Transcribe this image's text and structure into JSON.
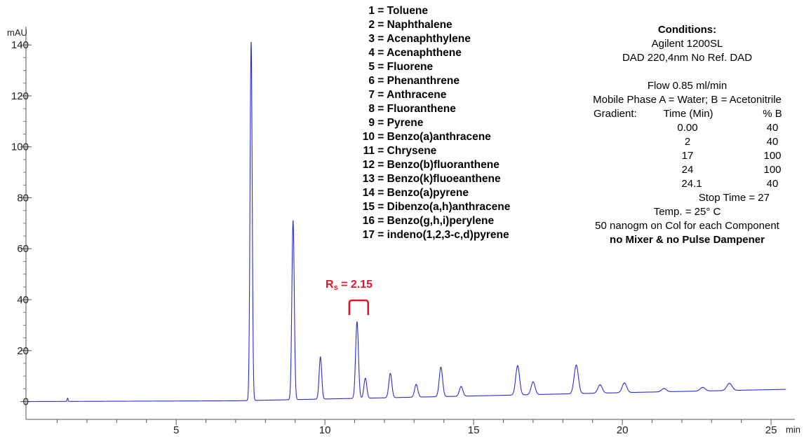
{
  "chart_data": {
    "type": "line",
    "title": "",
    "xlabel": "",
    "ylabel": "",
    "x_unit": "min",
    "y_unit": "mAU",
    "xlim": [
      -0.05,
      25.8
    ],
    "ylim": [
      -7,
      145
    ],
    "x_ticks": [
      5,
      10,
      15,
      20,
      25
    ],
    "y_ticks": [
      0,
      20,
      40,
      60,
      80,
      100,
      120,
      140
    ],
    "baseline": {
      "points": [
        [
          0,
          0
        ],
        [
          7.0,
          0.3
        ],
        [
          10,
          1.0
        ],
        [
          15,
          2.2
        ],
        [
          20,
          3.5
        ],
        [
          25.5,
          4.8
        ]
      ]
    },
    "series": [
      {
        "color": "#2b2bd6",
        "peaks": [
          {
            "rt": 1.35,
            "height": 1.2
          },
          {
            "rt": 7.52,
            "height": 140.5
          },
          {
            "rt": 8.93,
            "height": 70
          },
          {
            "rt": 9.85,
            "height": 16.5
          },
          {
            "rt": 11.08,
            "height": 30
          },
          {
            "rt": 11.36,
            "height": 7.8
          },
          {
            "rt": 12.2,
            "height": 9.5
          },
          {
            "rt": 13.07,
            "height": 5.0
          },
          {
            "rt": 13.9,
            "height": 11.5
          },
          {
            "rt": 14.58,
            "height": 3.8
          },
          {
            "rt": 16.48,
            "height": 11.5
          },
          {
            "rt": 17.0,
            "height": 5.0
          },
          {
            "rt": 18.45,
            "height": 11.2
          },
          {
            "rt": 19.25,
            "height": 3.3
          },
          {
            "rt": 20.07,
            "height": 3.8
          },
          {
            "rt": 21.4,
            "height": 1.3
          },
          {
            "rt": 22.7,
            "height": 1.4
          },
          {
            "rt": 23.6,
            "height": 2.8
          }
        ]
      }
    ]
  },
  "legend": [
    {
      "num": "1",
      "name": "= Toluene"
    },
    {
      "num": "2",
      "name": "= Naphthalene"
    },
    {
      "num": "3",
      "name": "= Acenaphthylene"
    },
    {
      "num": "4",
      "name": "= Acenaphthene"
    },
    {
      "num": "5",
      "name": "= Fluorene"
    },
    {
      "num": "6",
      "name": "= Phenanthrene"
    },
    {
      "num": "7",
      "name": "= Anthracene"
    },
    {
      "num": "8",
      "name": "= Fluoranthene"
    },
    {
      "num": "9",
      "name": "= Pyrene"
    },
    {
      "num": "10",
      "name": "= Benzo(a)anthracene"
    },
    {
      "num": "11",
      "name": "= Chrysene"
    },
    {
      "num": "12",
      "name": "= Benzo(b)fluoranthene"
    },
    {
      "num": "13",
      "name": "= Benzo(k)fluoeanthene"
    },
    {
      "num": "14",
      "name": "= Benzo(a)pyrene"
    },
    {
      "num": "15",
      "name": "= Dibenzo(a,h)anthracene"
    },
    {
      "num": "16",
      "name": "= Benzo(g,h,i)perylene"
    },
    {
      "num": "17",
      "name": "= indeno(1,2,3-c,d)pyrene"
    }
  ],
  "conditions": {
    "heading": "Conditions:",
    "instrument": "Agilent 1200SL",
    "detector": "DAD 220,4nm No Ref. DAD",
    "flow": "Flow 0.85 ml/min",
    "mobile_phase": "Mobile Phase A = Water; B = Acetonitrile",
    "gradient_label": "Gradient:",
    "gradient_time_header": "Time (Min)",
    "gradient_pct_header": "% B",
    "gradient": [
      {
        "time": "0.00",
        "pct": "40"
      },
      {
        "time": "2",
        "pct": "40"
      },
      {
        "time": "17",
        "pct": "100"
      },
      {
        "time": "24",
        "pct": "100"
      },
      {
        "time": "24.1",
        "pct": "40"
      }
    ],
    "stop_time": "Stop Time = 27",
    "temp": "Temp. = 25° C",
    "amount": "50 nanogm on Col for each Component",
    "note": "no Mixer & no Pulse Dampener"
  },
  "resolution": {
    "symbol": "R",
    "subscript": "s",
    "value": " = 2.15",
    "color": "#e8132b",
    "from_rt": 11.08,
    "to_rt": 11.36
  }
}
